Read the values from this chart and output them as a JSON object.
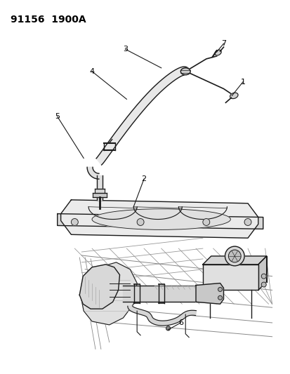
{
  "title": "91156  1900A",
  "title_fontsize": 10,
  "title_fontweight": "bold",
  "background_color": "#ffffff",
  "line_color": "#1a1a1a",
  "label_color": "#000000",
  "label_fontsize": 8,
  "figsize": [
    4.14,
    5.33
  ],
  "dpi": 100
}
